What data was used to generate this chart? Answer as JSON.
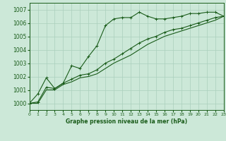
{
  "background_color": "#cce8d8",
  "grid_color": "#aacfbc",
  "line_color": "#1a5c1a",
  "xlabel": "Graphe pression niveau de la mer (hPa)",
  "xlim": [
    0,
    23
  ],
  "ylim": [
    999.5,
    1007.5
  ],
  "yticks": [
    1000,
    1001,
    1002,
    1003,
    1004,
    1005,
    1006,
    1007
  ],
  "xticks": [
    0,
    1,
    2,
    3,
    4,
    5,
    6,
    7,
    8,
    9,
    10,
    11,
    12,
    13,
    14,
    15,
    16,
    17,
    18,
    19,
    20,
    21,
    22,
    23
  ],
  "line1_x": [
    0,
    1,
    2,
    3,
    4,
    5,
    6,
    7,
    8,
    9,
    10,
    11,
    12,
    13,
    14,
    15,
    16,
    17,
    18,
    19,
    20,
    21,
    22,
    23
  ],
  "line1_y": [
    1000.0,
    1000.7,
    1001.9,
    1001.1,
    1001.5,
    1002.8,
    1002.6,
    1003.5,
    1004.3,
    1005.8,
    1006.3,
    1006.4,
    1006.4,
    1006.8,
    1006.5,
    1006.3,
    1006.3,
    1006.4,
    1006.5,
    1006.7,
    1006.7,
    1006.8,
    1006.8,
    1006.5
  ],
  "line2_x": [
    0,
    1,
    2,
    3,
    4,
    5,
    6,
    7,
    8,
    9,
    10,
    11,
    12,
    13,
    14,
    15,
    16,
    17,
    18,
    19,
    20,
    21,
    22,
    23
  ],
  "line2_y": [
    1000.0,
    1000.1,
    1001.2,
    1001.1,
    1001.5,
    1001.8,
    1002.1,
    1002.2,
    1002.5,
    1003.0,
    1003.3,
    1003.7,
    1004.1,
    1004.5,
    1004.8,
    1005.0,
    1005.3,
    1005.5,
    1005.6,
    1005.8,
    1006.0,
    1006.2,
    1006.4,
    1006.5
  ],
  "line3_x": [
    0,
    1,
    2,
    3,
    4,
    5,
    6,
    7,
    8,
    9,
    10,
    11,
    12,
    13,
    14,
    15,
    16,
    17,
    18,
    19,
    20,
    21,
    22,
    23
  ],
  "line3_y": [
    1000.0,
    1000.0,
    1001.0,
    1001.0,
    1001.4,
    1001.6,
    1001.9,
    1002.0,
    1002.2,
    1002.6,
    1003.0,
    1003.3,
    1003.6,
    1004.0,
    1004.4,
    1004.7,
    1005.0,
    1005.2,
    1005.4,
    1005.6,
    1005.8,
    1006.0,
    1006.2,
    1006.5
  ]
}
